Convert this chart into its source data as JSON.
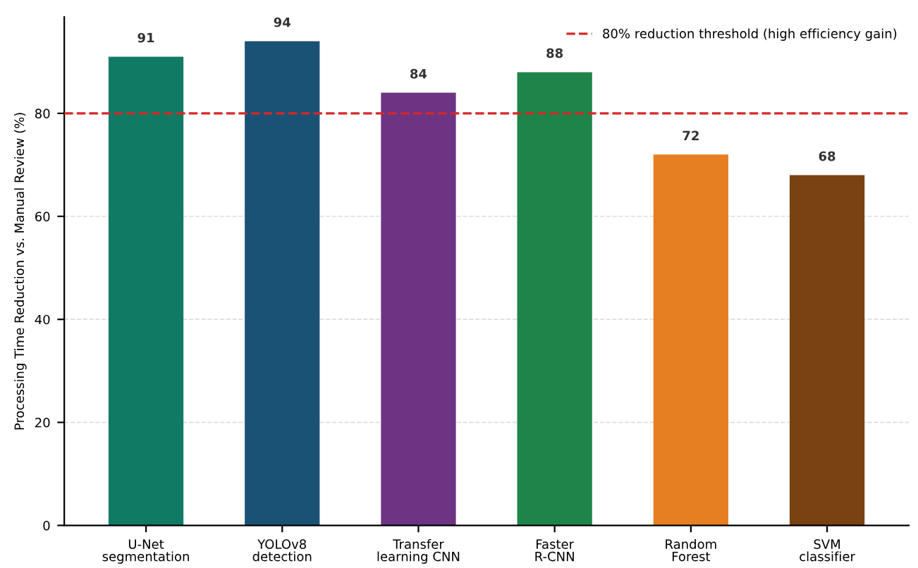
{
  "chart_data": {
    "type": "bar",
    "ylabel": "Processing Time Reduction vs. Manual Review (%)",
    "categories": [
      "U-Net\nsegmentation",
      "YOLOv8\ndetection",
      "Transfer\nlearning CNN",
      "Faster\nR-CNN",
      "Random\nForest",
      "SVM\nclassifier"
    ],
    "values": [
      91,
      94,
      84,
      88,
      72,
      68
    ],
    "colors": [
      "#117a65",
      "#1a5276",
      "#6c3483",
      "#1e8449",
      "#e67e22",
      "#784212"
    ],
    "ylim": [
      0,
      98.7
    ],
    "yticks": [
      0,
      20,
      40,
      60,
      80
    ],
    "grid": "y",
    "data_labels": true,
    "legend": "top right",
    "ref_lines": [
      {
        "axis": "y",
        "value": 80,
        "label": "80% reduction threshold (high efficiency gain)",
        "color": "#d62728",
        "line_style": "dashed"
      }
    ]
  }
}
